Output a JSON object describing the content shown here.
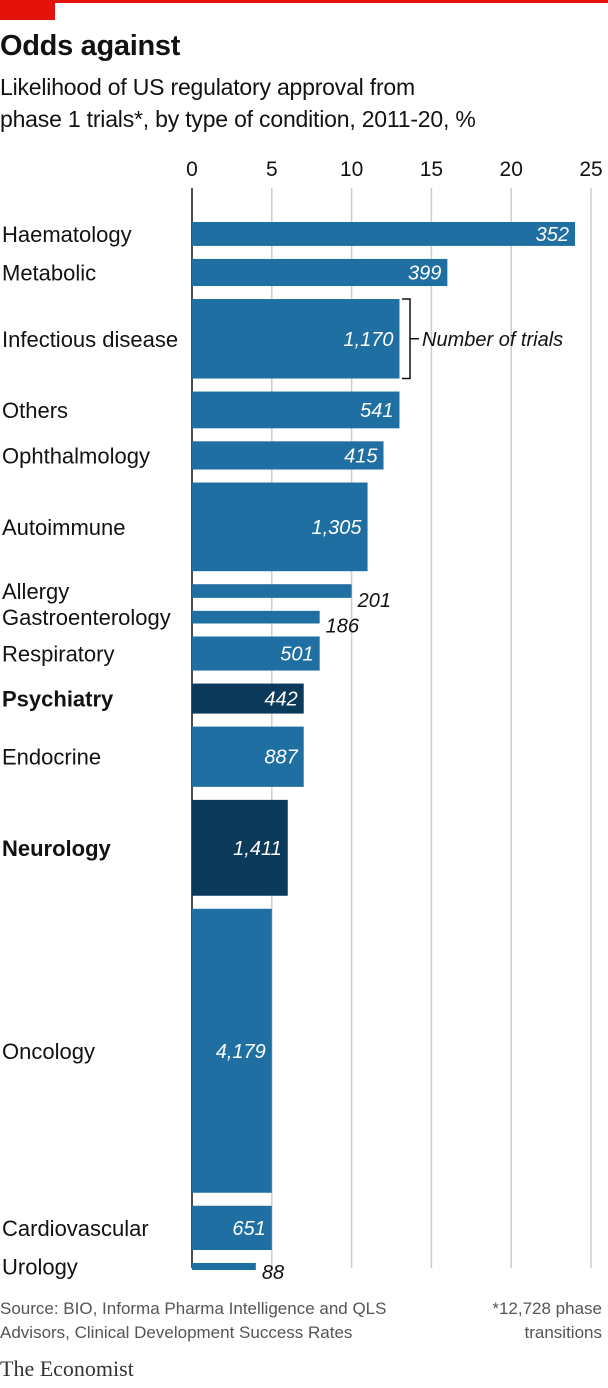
{
  "header": {
    "title": "Odds against",
    "subtitle_line1": "Likelihood of US regulatory approval from",
    "subtitle_line2": "phase 1 trials*, by type of condition, 2011-20, %"
  },
  "annotation": {
    "label": "Number of trials"
  },
  "footer": {
    "source_line1": "Source: BIO, Informa Pharma Intelligence and QLS",
    "source_line2": "Advisors, Clinical Development Success Rates",
    "note_line1": "*12,728 phase",
    "note_line2": "transitions",
    "brand": "The Economist"
  },
  "colors": {
    "bar": "#1f6fa3",
    "bar_highlight": "#0c3a5a",
    "accent_red": "#e3120b",
    "gridline": "#c5cfd8",
    "axis_text": "#121212"
  },
  "chart_data": {
    "type": "bar",
    "orientation": "horizontal",
    "bar_thickness_encodes": "number of trials",
    "xlim": [
      0,
      25
    ],
    "x_ticks": [
      "0",
      "5",
      "10",
      "15",
      "20",
      "25"
    ],
    "grid": true,
    "categories": [
      "Haematology",
      "Metabolic",
      "Infectious disease",
      "Others",
      "Ophthalmology",
      "Autoimmune",
      "Allergy",
      "Gastroenterology",
      "Respiratory",
      "Psychiatry",
      "Endocrine",
      "Neurology",
      "Oncology",
      "Cardiovascular",
      "Urology"
    ],
    "values": [
      24.0,
      16.0,
      13.0,
      13.0,
      12.0,
      11.0,
      10.0,
      8.0,
      8.0,
      7.0,
      7.0,
      6.0,
      5.0,
      5.0,
      4.0
    ],
    "trial_counts": [
      352,
      399,
      1170,
      541,
      415,
      1305,
      201,
      186,
      501,
      442,
      887,
      1411,
      4179,
      651,
      88
    ],
    "trial_labels": [
      "352",
      "399",
      "1,170",
      "541",
      "415",
      "1,305",
      "201",
      "186",
      "501",
      "442",
      "887",
      "1,411",
      "4,179",
      "651",
      "88"
    ],
    "highlighted": [
      "Psychiatry",
      "Neurology"
    ]
  }
}
